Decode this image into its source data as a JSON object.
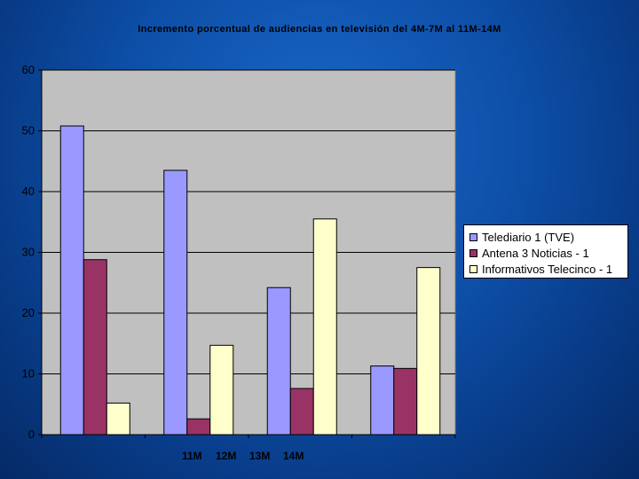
{
  "chart_data": {
    "type": "bar",
    "title": "Incremento porcentual de audiencias en televisión del 4M-7M al 11M-14M",
    "categories": [
      "11M",
      "12M",
      "13M",
      "14M"
    ],
    "series": [
      {
        "name": "Telediario 1 (TVE)",
        "color": "#9999ff",
        "values": [
          50.8,
          43.5,
          24.2,
          11.3
        ]
      },
      {
        "name": "Antena 3 Noticias - 1",
        "color": "#993366",
        "values": [
          28.8,
          2.6,
          7.6,
          10.9
        ]
      },
      {
        "name": "Informativos Telecinco - 1",
        "color": "#ffffcc",
        "values": [
          5.2,
          14.7,
          35.5,
          27.5
        ]
      }
    ],
    "ylim": [
      0,
      60
    ],
    "yticks": [
      "0",
      "10",
      "20",
      "30",
      "40",
      "50",
      "60"
    ],
    "xlabel": "",
    "ylabel": "",
    "grid": true,
    "plot_bg": "#c0c0c0",
    "legend_position": "right"
  }
}
